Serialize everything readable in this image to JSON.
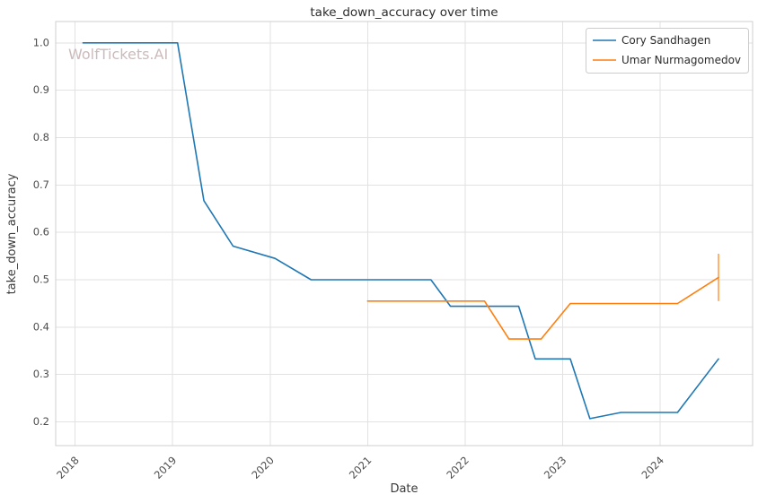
{
  "watermark": "WolfTickets.AI",
  "chart_data": {
    "type": "line",
    "title": "take_down_accuracy over time",
    "xlabel": "Date",
    "ylabel": "take_down_accuracy",
    "grid": true,
    "legend_position": "upper right",
    "xlim": [
      2017.8,
      2024.95
    ],
    "ylim": [
      0.15,
      1.045
    ],
    "x_tick_values": [
      2018,
      2019,
      2020,
      2021,
      2022,
      2023,
      2024
    ],
    "x_tick_labels": [
      "2018",
      "2019",
      "2020",
      "2021",
      "2022",
      "2023",
      "2024"
    ],
    "y_tick_values": [
      0.2,
      0.3,
      0.4,
      0.5,
      0.6,
      0.7,
      0.8,
      0.9,
      1.0
    ],
    "y_tick_labels": [
      "0.2",
      "0.3",
      "0.4",
      "0.5",
      "0.6",
      "0.7",
      "0.8",
      "0.9",
      "1.0"
    ],
    "series": [
      {
        "name": "Cory Sandhagen",
        "color": "#1f77b4",
        "x": [
          2018.08,
          2019.05,
          2019.32,
          2019.62,
          2020.05,
          2020.42,
          2021.65,
          2021.85,
          2022.55,
          2022.72,
          2023.08,
          2023.28,
          2023.6,
          2024.18,
          2024.6
        ],
        "y": [
          1.0,
          1.0,
          0.667,
          0.571,
          0.545,
          0.5,
          0.5,
          0.444,
          0.444,
          0.333,
          0.333,
          0.207,
          0.22,
          0.22,
          0.333
        ]
      },
      {
        "name": "Umar Nurmagomedov",
        "color": "#ff7f0e",
        "x": [
          2021.0,
          2022.2,
          2022.45,
          2022.78,
          2023.08,
          2024.18,
          2024.6
        ],
        "y": [
          0.455,
          0.455,
          0.375,
          0.375,
          0.45,
          0.45,
          0.505
        ],
        "error_bar": {
          "x": 2024.6,
          "y_low": 0.455,
          "y_high": 0.555
        }
      }
    ]
  }
}
